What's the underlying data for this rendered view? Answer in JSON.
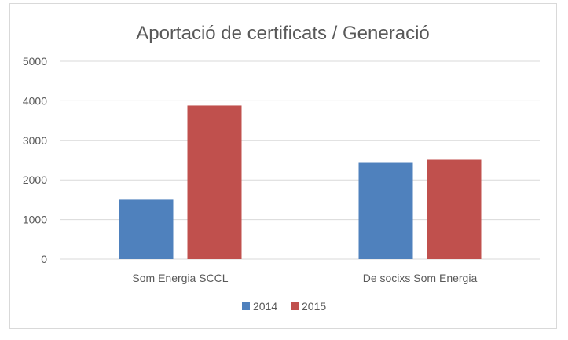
{
  "chart_data": {
    "type": "bar",
    "title": "Aportació de certificats / Generació",
    "categories": [
      "Som Energia SCCL",
      "De socixs Som Energia"
    ],
    "series": [
      {
        "name": "2014",
        "color": "#4F81BD",
        "values": [
          1500,
          2450
        ]
      },
      {
        "name": "2015",
        "color": "#C0504D",
        "values": [
          3880,
          2510
        ]
      }
    ],
    "ylim": [
      0,
      5000
    ],
    "yticks": [
      0,
      1000,
      2000,
      3000,
      4000,
      5000
    ],
    "grid": true,
    "legend_position": "bottom",
    "gridline_color": "#d9d9d9"
  }
}
